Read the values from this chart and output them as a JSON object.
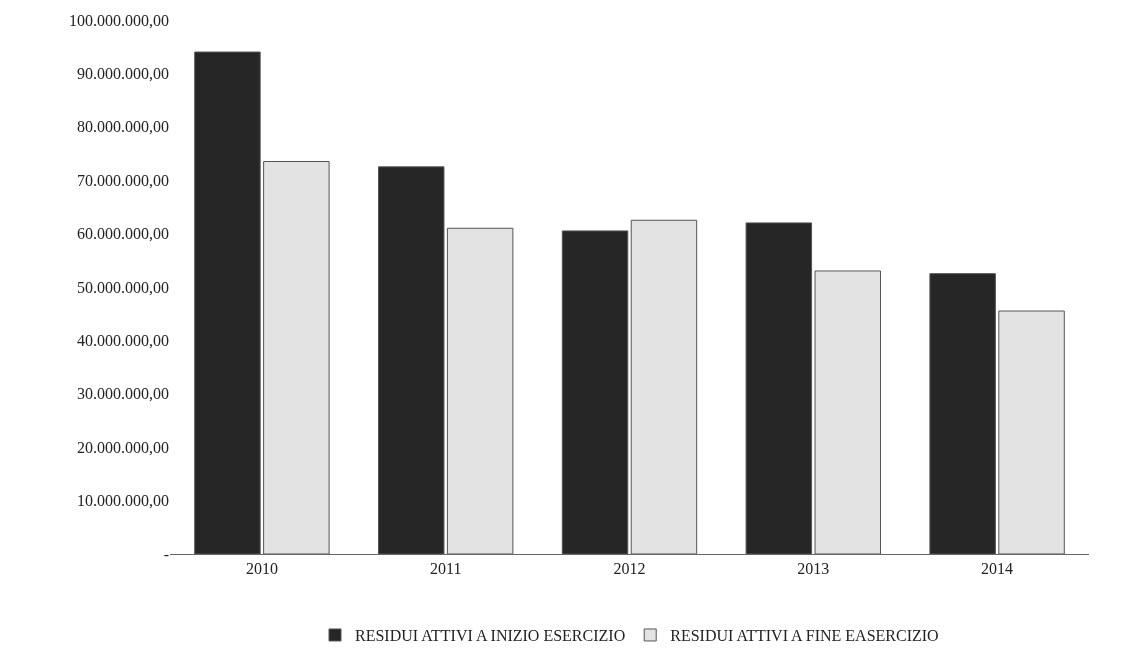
{
  "chart_data": {
    "type": "bar",
    "categories": [
      "2010",
      "2011",
      "2012",
      "2013",
      "2014"
    ],
    "series": [
      {
        "name": "RESIDUI ATTIVI A INIZIO ESERCIZIO",
        "color": "#262626",
        "values": [
          94000000,
          72500000,
          60500000,
          62000000,
          52500000
        ]
      },
      {
        "name": "RESIDUI ATTIVI A FINE EASERCIZIO",
        "color": "#e3e3e3",
        "values": [
          73500000,
          61000000,
          62500000,
          53000000,
          45500000
        ]
      }
    ],
    "ylim": [
      0,
      100000000
    ],
    "yticks": [
      {
        "value": 0,
        "label": "-"
      },
      {
        "value": 10000000,
        "label": "10.000.000,00"
      },
      {
        "value": 20000000,
        "label": "20.000.000,00"
      },
      {
        "value": 30000000,
        "label": "30.000.000,00"
      },
      {
        "value": 40000000,
        "label": "40.000.000,00"
      },
      {
        "value": 50000000,
        "label": "50.000.000,00"
      },
      {
        "value": 60000000,
        "label": "60.000.000,00"
      },
      {
        "value": 70000000,
        "label": "70.000.000,00"
      },
      {
        "value": 80000000,
        "label": "80.000.000,00"
      },
      {
        "value": 90000000,
        "label": "90.000.000,00"
      },
      {
        "value": 100000000,
        "label": "100.000.000,00"
      }
    ],
    "legend": "bottom"
  }
}
